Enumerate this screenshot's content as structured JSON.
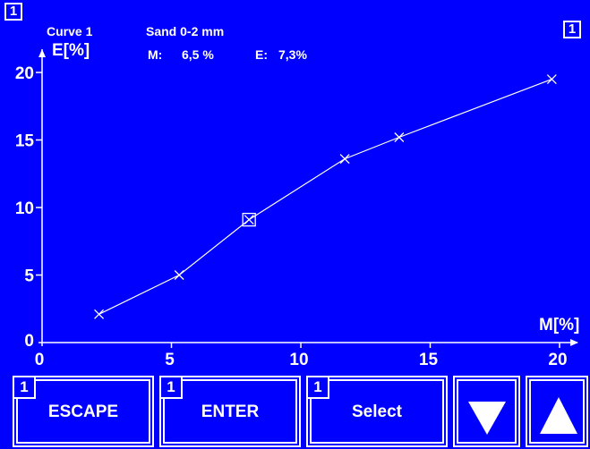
{
  "header": {
    "screen_badge_left": "1",
    "screen_badge_right": "1",
    "curve_label": "Curve 1",
    "material": "Sand 0-2 mm",
    "m_label": "M:",
    "m_value": "6,5 %",
    "e_label": "E:",
    "e_value": "7,3%"
  },
  "chart_data": {
    "type": "line",
    "xlabel": "M[%]",
    "ylabel": "E[%]",
    "xlim": [
      0,
      21
    ],
    "ylim": [
      0,
      21
    ],
    "x_ticks": [
      "0",
      "5",
      "10",
      "15",
      "20"
    ],
    "y_ticks": [
      "0",
      "5",
      "10",
      "15",
      "20"
    ],
    "series": [
      {
        "points": [
          {
            "x": 2.2,
            "y": 2.1
          },
          {
            "x": 5.3,
            "y": 5.0
          },
          {
            "x": 8.0,
            "y": 9.1
          },
          {
            "x": 11.7,
            "y": 13.6
          },
          {
            "x": 13.8,
            "y": 15.2
          },
          {
            "x": 19.7,
            "y": 19.5
          }
        ],
        "selected_index": 2
      }
    ],
    "colors": {
      "line": "#ffffff",
      "background": "#0000ff"
    }
  },
  "softkeys": [
    {
      "badge": "1",
      "label": "ESCAPE"
    },
    {
      "badge": "1",
      "label": "ENTER"
    },
    {
      "badge": "1",
      "label": "Select"
    },
    {
      "icon": "arrow-down-icon"
    },
    {
      "icon": "arrow-up-icon"
    }
  ]
}
